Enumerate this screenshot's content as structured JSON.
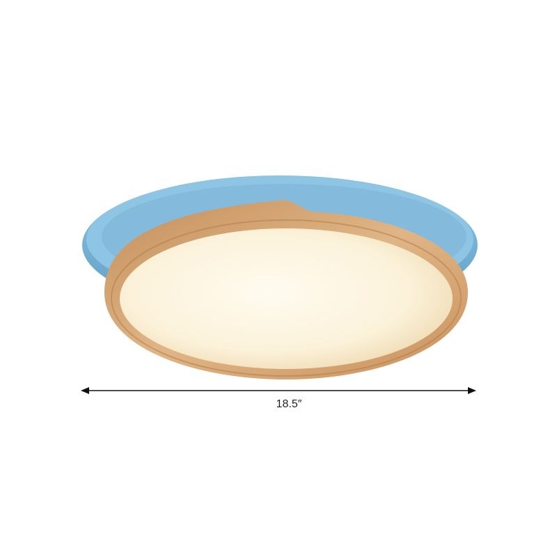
{
  "product": {
    "dimension_label": "18.5″",
    "colors": {
      "shade": "#7cb8dc",
      "shade_dark": "#4f8fb8",
      "wood": "#d8a877",
      "wood_dark": "#b9824f",
      "diffuser": "#fdf4de"
    }
  }
}
